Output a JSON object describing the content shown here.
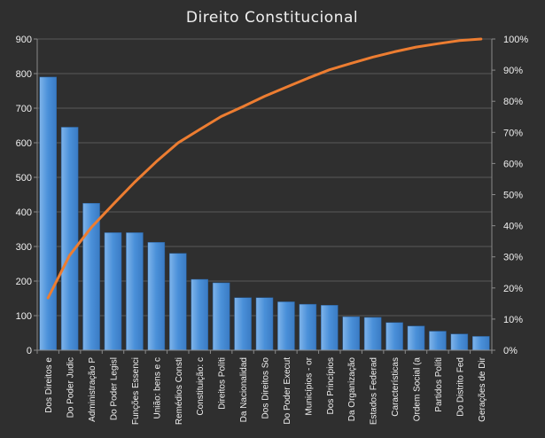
{
  "chart_data": {
    "type": "bar",
    "title": "Direito  Constitucional",
    "categories": [
      "Dos Direitos e",
      "Do Poder Judic",
      "Administração P",
      "Do Poder Legisl",
      "Funções Essenci",
      "União: bens e c",
      "Remédios Consti",
      "Constituição: c",
      "Direitos Políti",
      "Da Nacionalidad",
      "Dos Direitos So",
      "Do Poder Execut",
      "Municípios - or",
      "Dos Princípios",
      "Da Organização",
      "Estados Federad",
      "Características",
      "Ordem Social (a",
      "Partidos Políti",
      "Do Distrito Fed",
      "Gerações de Dir"
    ],
    "series": [
      {
        "values": [
          790,
          645,
          425,
          340,
          340,
          312,
          280,
          205,
          195,
          152,
          152,
          140,
          133,
          130,
          97,
          95,
          80,
          70,
          55,
          47,
          40
        ]
      },
      {
        "axis": "secondary",
        "type": "line",
        "color": "#ed7d31",
        "values": [
          16.8,
          30.5,
          39.5,
          46.8,
          54.0,
          60.6,
          66.6,
          70.9,
          75.1,
          78.3,
          81.6,
          84.5,
          87.4,
          90.1,
          92.2,
          94.2,
          95.9,
          97.4,
          98.5,
          99.5,
          100
        ]
      }
    ],
    "ylim": [
      0,
      900
    ],
    "yticks": [
      "0",
      "100",
      "200",
      "300",
      "400",
      "500",
      "600",
      "700",
      "800",
      "900"
    ],
    "y2lim": [
      0,
      100
    ],
    "y2ticks": [
      "0%",
      "10%",
      "20%",
      "30%",
      "40%",
      "50%",
      "60%",
      "70%",
      "80%",
      "90%",
      "100%"
    ],
    "grid": true,
    "legend": "none",
    "colors": {
      "background": "#2f2f2f",
      "bar": "#4a90d9",
      "bar_light": "#7fb4ea",
      "line": "#ed7d31",
      "text": "#f0f0f0",
      "grid": "#5a5a5a"
    }
  }
}
